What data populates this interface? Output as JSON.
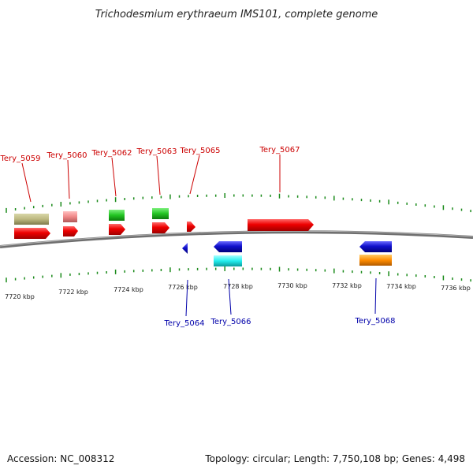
{
  "title": "Trichodesmium erythraeum IMS101, complete genome",
  "footer": {
    "accession": "Accession: NC_008312",
    "summary": "Topology: circular; Length: 7,750,108 bp; Genes: 4,498"
  },
  "tick_labels": [
    "7720 kbp",
    "7722 kbp",
    "7724 kbp",
    "7726 kbp",
    "7728 kbp",
    "7730 kbp",
    "7732 kbp",
    "7734 kbp",
    "7736 kbp"
  ],
  "gene_labels": [
    {
      "name": "Tery_5059",
      "strand": "forward"
    },
    {
      "name": "Tery_5060",
      "strand": "forward"
    },
    {
      "name": "Tery_5062",
      "strand": "forward"
    },
    {
      "name": "Tery_5063",
      "strand": "forward"
    },
    {
      "name": "Tery_5065",
      "strand": "forward"
    },
    {
      "name": "Tery_5067",
      "strand": "forward"
    },
    {
      "name": "Tery_5064",
      "strand": "reverse"
    },
    {
      "name": "Tery_5066",
      "strand": "reverse"
    },
    {
      "name": "Tery_5068",
      "strand": "reverse"
    }
  ],
  "colors": {
    "cds": "#ee0000",
    "cds_reverse": "#1111cc",
    "backbone": "#808080",
    "ticks": "#1a8a1a",
    "label_forward": "#cc0000",
    "label_reverse": "#0000aa"
  }
}
